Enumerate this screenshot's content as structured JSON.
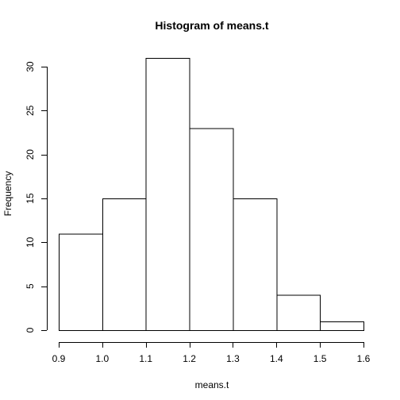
{
  "chart_data": {
    "type": "bar",
    "title": "Histogram of means.t",
    "xlabel": "means.t",
    "ylabel": "Frequency",
    "bin_edges": [
      0.9,
      1.0,
      1.1,
      1.2,
      1.3,
      1.4,
      1.5,
      1.6
    ],
    "values": [
      11,
      15,
      31,
      23,
      15,
      4,
      1
    ],
    "xlim": [
      0.9,
      1.6
    ],
    "ylim": [
      0,
      31
    ],
    "x_ticks": [
      0.9,
      1.0,
      1.1,
      1.2,
      1.3,
      1.4,
      1.5,
      1.6
    ],
    "x_tick_labels": [
      "0.9",
      "1.0",
      "1.1",
      "1.2",
      "1.3",
      "1.4",
      "1.5",
      "1.6"
    ],
    "y_ticks": [
      0,
      5,
      10,
      15,
      20,
      25,
      30
    ],
    "y_tick_labels": [
      "0",
      "5",
      "10",
      "15",
      "20",
      "25",
      "30"
    ],
    "grid": false,
    "colors": {
      "bar_fill": "#ffffff",
      "bar_stroke": "#000000"
    }
  }
}
